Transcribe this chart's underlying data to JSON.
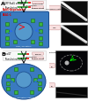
{
  "fig_width": 1.0,
  "fig_height": 1.15,
  "dpi": 100,
  "yellow_bg": "#f0f0d0",
  "blue_cell": "#3a7abf",
  "blue_cell_light": "#5aaad5",
  "green_bar": "#4caf50",
  "red_bar": "#e53935",
  "white": "#ffffff",
  "dark_bg": "#101010",
  "mid_gray_bg": "#1a1a1a",
  "panel_sep_color": "#aaaaaa",
  "label_box_color": "#f8e8e8",
  "label_box_edge": "#d4a0a0",
  "green_sq": "#3db53d",
  "nucleus_color": "#5599cc",
  "dashed_red": "#dd2200",
  "pink_box": "#f9e0e0",
  "light_pink_edge": "#cc9999"
}
